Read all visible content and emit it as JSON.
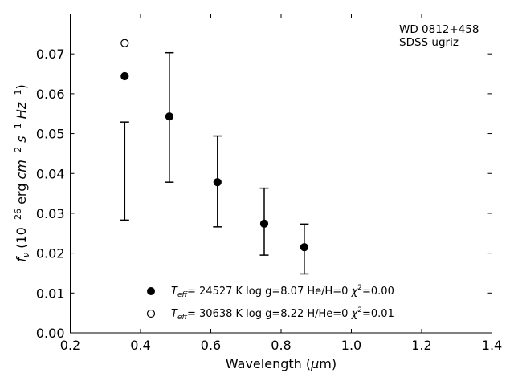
{
  "chart_data": {
    "type": "scatter",
    "annotation": [
      "WD 0812+458",
      "SDSS ugriz"
    ],
    "xlabel": {
      "pre": "Wavelength (",
      "mu": "μ",
      "post": "m)"
    },
    "ylabel": {
      "f": "f",
      "nu": "ν",
      "rest1": " (10",
      "exp1": "−26",
      "rest2": " erg ",
      "cm": "cm",
      "exp2": "−2",
      "s": " s",
      "exp3": "−1",
      "hz": " Hz",
      "exp4": "−1",
      "close": ")"
    },
    "xlim": [
      0.2,
      1.4
    ],
    "ylim": [
      0.0,
      0.08
    ],
    "xticks": [
      "0.2",
      "0.4",
      "0.6",
      "0.8",
      "1.0",
      "1.2",
      "1.4"
    ],
    "xtick_values": [
      0.2,
      0.4,
      0.6,
      0.8,
      1.0,
      1.2,
      1.4
    ],
    "yticks": [
      "0.00",
      "0.01",
      "0.02",
      "0.03",
      "0.04",
      "0.05",
      "0.06",
      "0.07"
    ],
    "ytick_values": [
      0.0,
      0.01,
      0.02,
      0.03,
      0.04,
      0.05,
      0.06,
      0.07
    ],
    "observed": {
      "x": [
        0.355,
        0.482,
        0.619,
        0.752,
        0.866
      ],
      "low": [
        0.0283,
        0.0378,
        0.0266,
        0.0195,
        0.0148
      ],
      "high": [
        0.0529,
        0.0703,
        0.0494,
        0.0363,
        0.0273
      ]
    },
    "series": [
      {
        "marker": "filled",
        "x": [
          0.355,
          0.482,
          0.619,
          0.752,
          0.866
        ],
        "y": [
          0.0644,
          0.0543,
          0.0378,
          0.0274,
          0.0215
        ],
        "legend": {
          "T": "T",
          "sub": "eff",
          "text": "= 24527 K  log g=8.07  He/H=0  ",
          "chi": "χ",
          "sup": "2",
          "chi_val": "=0.00"
        }
      },
      {
        "marker": "open",
        "x": [
          0.355
        ],
        "y": [
          0.0727
        ],
        "legend": {
          "T": "T",
          "sub": "eff",
          "text": "= 30638 K  log g=8.22  H/He=0  ",
          "chi": "χ",
          "sup": "2",
          "chi_val": "=0.01"
        }
      }
    ]
  }
}
